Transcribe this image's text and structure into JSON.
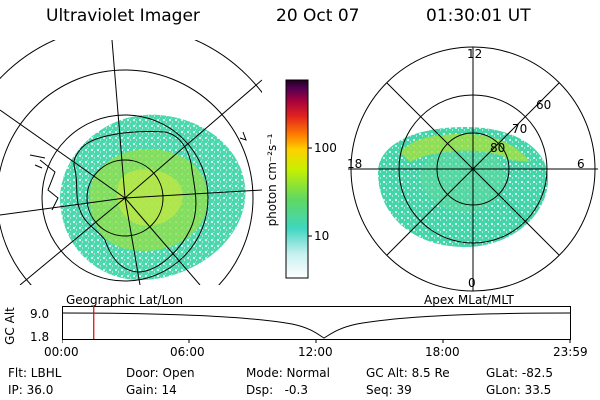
{
  "header": {
    "title": "Ultraviolet Imager",
    "date": "20 Oct 07",
    "time": "01:30:01 UT"
  },
  "colorbar": {
    "label": "photon cm⁻²s⁻¹",
    "ticks": [
      "100",
      "10"
    ]
  },
  "left_map": {
    "caption": "Geographic Lat/Lon"
  },
  "right_map": {
    "caption": "Apex MLat/MLT",
    "mlt_labels": [
      "12",
      "18",
      "6",
      "0"
    ],
    "lat_labels": [
      "60",
      "70",
      "80"
    ]
  },
  "timeline": {
    "ylabel": "GC Alt",
    "y_ticks": [
      "9.0",
      "1.8"
    ],
    "x_ticks": [
      "00:00",
      "06:00",
      "12:00",
      "18:00",
      "23:59"
    ],
    "marker_time_hours": 1.5
  },
  "info": {
    "flt": "Flt: LBHL",
    "ip": "IP: 36.0",
    "door": "Door: Open",
    "gain": "Gain: 14",
    "mode": "Mode: Normal",
    "dsp": "Dsp:   -0.3",
    "gc_alt": "GC Alt: 8.5 Re",
    "seq": "Seq: 39",
    "glat": "GLat: -82.5",
    "glon": "GLon: 33.5"
  }
}
